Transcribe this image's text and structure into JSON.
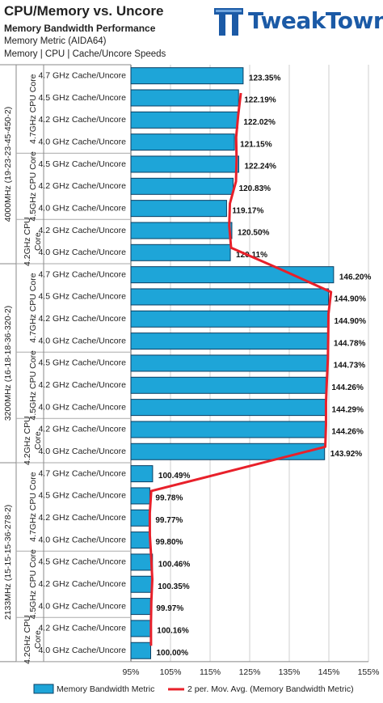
{
  "title": "CPU/Memory vs. Uncore",
  "subtitle": "Memory Bandwidth Performance",
  "metric_line": "Memory Metric (AIDA64)",
  "tags_line": "Memory | CPU | Cache/Uncore Speeds",
  "logo_text": "TweakTown",
  "colors": {
    "bar_fill": "#1ea5d8",
    "bar_stroke": "#0b3f63",
    "line": "#e8202a",
    "grid": "#cfcfcf"
  },
  "chart_data": {
    "type": "bar",
    "orientation": "horizontal",
    "categories": [
      "4.7 GHz Cache/Uncore",
      "4.5 GHz Cache/Uncore",
      "4.2 GHz Cache/Uncore",
      "4.0 GHz Cache/Uncore",
      "4.5 GHz Cache/Uncore",
      "4.2 GHz Cache/Uncore",
      "4.0 GHz Cache/Uncore",
      "4.2 GHz Cache/Uncore",
      "4.0 GHz Cache/Uncore",
      "4.7 GHz Cache/Uncore",
      "4.5 GHz Cache/Uncore",
      "4.2 GHz Cache/Uncore",
      "4.0 GHz Cache/Uncore",
      "4.5 GHz Cache/Uncore",
      "4.2 GHz Cache/Uncore",
      "4.0 GHz Cache/Uncore",
      "4.2 GHz Cache/Uncore",
      "4.0 GHz Cache/Uncore",
      "4.7 GHz Cache/Uncore",
      "4.5 GHz Cache/Uncore",
      "4.2 GHz Cache/Uncore",
      "4.0 GHz Cache/Uncore",
      "4.5 GHz Cache/Uncore",
      "4.2 GHz Cache/Uncore",
      "4.0 GHz Cache/Uncore",
      "4.2 GHz Cache/Uncore",
      "4.0 GHz Cache/Uncore"
    ],
    "values": [
      123.35,
      122.19,
      122.02,
      121.15,
      122.24,
      120.83,
      119.17,
      120.5,
      120.11,
      146.2,
      144.9,
      144.9,
      144.78,
      144.73,
      144.26,
      144.29,
      144.26,
      143.92,
      100.49,
      99.78,
      99.77,
      99.8,
      100.46,
      100.35,
      99.97,
      100.16,
      100.0
    ],
    "value_labels": [
      "123.35%",
      "122.19%",
      "122.02%",
      "121.15%",
      "122.24%",
      "120.83%",
      "119.17%",
      "120.50%",
      "120.11%",
      "146.20%",
      "144.90%",
      "144.90%",
      "144.78%",
      "144.73%",
      "144.26%",
      "144.29%",
      "144.26%",
      "143.92%",
      "100.49%",
      "99.78%",
      "99.77%",
      "99.80%",
      "100.46%",
      "100.35%",
      "99.97%",
      "100.16%",
      "100.00%"
    ],
    "groups_outer": [
      {
        "label": "4000MHz (19-23-23-45-450-2)",
        "start": 0,
        "count": 9
      },
      {
        "label": "3200MHz (16-18-18-36-320-2)",
        "start": 9,
        "count": 9
      },
      {
        "label": "2133MHz (15-15-15-36-278-2)",
        "start": 18,
        "count": 9
      }
    ],
    "groups_inner": [
      {
        "lines": [
          "4.7GHz CPU Core"
        ],
        "start": 0,
        "count": 4
      },
      {
        "lines": [
          "4.5GHz CPU Core"
        ],
        "start": 4,
        "count": 3
      },
      {
        "lines": [
          "4.2GHz CPU",
          "Core"
        ],
        "start": 7,
        "count": 2
      },
      {
        "lines": [
          "4.7GHz CPU Core"
        ],
        "start": 9,
        "count": 4
      },
      {
        "lines": [
          "4.5GHz CPU Core"
        ],
        "start": 13,
        "count": 3
      },
      {
        "lines": [
          "4.2GHz CPU",
          "Core"
        ],
        "start": 16,
        "count": 2
      },
      {
        "lines": [
          "4.7GHz CPU Core"
        ],
        "start": 18,
        "count": 4
      },
      {
        "lines": [
          "4.5GHz CPU Core"
        ],
        "start": 22,
        "count": 3
      },
      {
        "lines": [
          "4.2GHz CPU",
          "Core"
        ],
        "start": 25,
        "count": 2
      }
    ],
    "xlim": [
      95,
      155
    ],
    "xticks": [
      95,
      105,
      115,
      125,
      135,
      145,
      155
    ],
    "xtick_labels": [
      "95%",
      "105%",
      "115%",
      "125%",
      "135%",
      "145%",
      "155%"
    ],
    "grid": true,
    "legend_position": "bottom",
    "legend": {
      "bar": "Memory Bandwidth Metric",
      "line": "2 per. Mov. Avg. (Memory Bandwidth Metric)"
    }
  }
}
